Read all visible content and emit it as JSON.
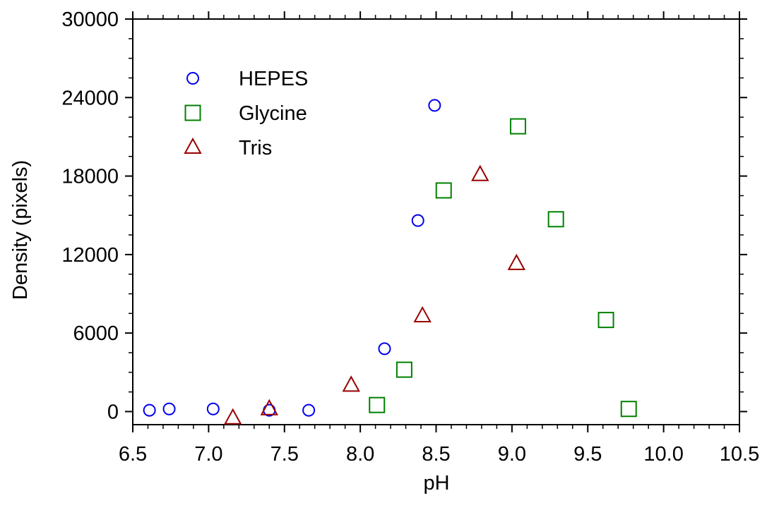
{
  "chart_data": {
    "type": "scatter",
    "xlabel": "pH",
    "ylabel": "Density (pixels)",
    "xlim": [
      6.5,
      10.5
    ],
    "ylim": [
      -1000,
      30000
    ],
    "x_ticks": [
      "6.5",
      "7.0",
      "7.5",
      "8.0",
      "8.5",
      "9.0",
      "9.5",
      "10.0",
      "10.5"
    ],
    "y_ticks": [
      "0",
      "6000",
      "12000",
      "18000",
      "24000",
      "30000"
    ],
    "grid": false,
    "legend_position": "top-left",
    "series": [
      {
        "name": "HEPES",
        "marker": "circle",
        "color": "#0000ee",
        "points": [
          [
            6.61,
            100
          ],
          [
            6.74,
            200
          ],
          [
            7.03,
            200
          ],
          [
            7.4,
            100
          ],
          [
            7.66,
            100
          ],
          [
            8.16,
            4800
          ],
          [
            8.38,
            14600
          ],
          [
            8.49,
            23400
          ]
        ]
      },
      {
        "name": "Glycine",
        "marker": "square",
        "color": "#008000",
        "points": [
          [
            8.11,
            500
          ],
          [
            8.29,
            3200
          ],
          [
            8.55,
            16900
          ],
          [
            9.04,
            21800
          ],
          [
            9.29,
            14700
          ],
          [
            9.62,
            7000
          ],
          [
            9.77,
            200
          ]
        ]
      },
      {
        "name": "Tris",
        "marker": "triangle",
        "color": "#990000",
        "points": [
          [
            7.16,
            -500
          ],
          [
            7.4,
            200
          ],
          [
            7.94,
            2000
          ],
          [
            8.41,
            7300
          ],
          [
            8.79,
            18100
          ],
          [
            9.03,
            11300
          ]
        ]
      }
    ]
  }
}
